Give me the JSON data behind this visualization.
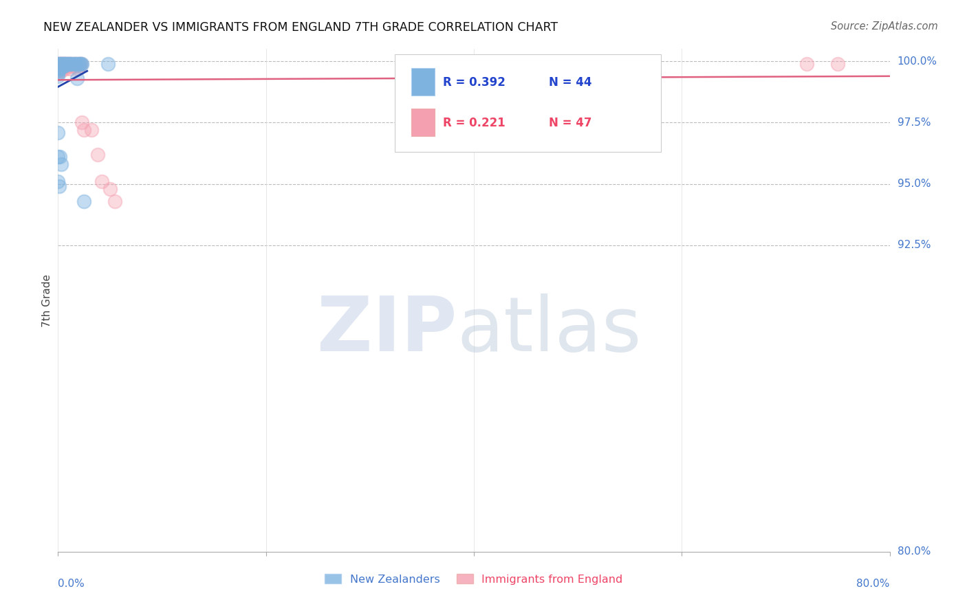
{
  "title": "NEW ZEALANDER VS IMMIGRANTS FROM ENGLAND 7TH GRADE CORRELATION CHART",
  "source": "Source: ZipAtlas.com",
  "ylabel": "7th Grade",
  "r1": 0.392,
  "n1": 44,
  "r2": 0.221,
  "n2": 47,
  "color_blue": "#7EB3E0",
  "color_pink": "#F4A0B0",
  "color_blue_line": "#2244AA",
  "color_pink_line": "#E06080",
  "xlim": [
    0.0,
    0.8
  ],
  "ylim": [
    0.8,
    1.005
  ],
  "xgrid_ticks": [
    0.0,
    0.2,
    0.4,
    0.6,
    0.8
  ],
  "ygrid_ticks": [
    1.0,
    0.975,
    0.95,
    0.925
  ],
  "ylabel_right_vals": [
    1.0,
    0.975,
    0.95,
    0.925,
    0.8
  ],
  "ylabel_right_labels": [
    "100.0%",
    "97.5%",
    "95.0%",
    "92.5%",
    "80.0%"
  ],
  "legend_label1": "New Zealanders",
  "legend_label2": "Immigrants from England",
  "nz_x": [
    0.001,
    0.001,
    0.001,
    0.002,
    0.002,
    0.002,
    0.003,
    0.003,
    0.004,
    0.004,
    0.005,
    0.005,
    0.006,
    0.006,
    0.007,
    0.008,
    0.009,
    0.01,
    0.011,
    0.012,
    0.013,
    0.015,
    0.016,
    0.017,
    0.018,
    0.019,
    0.02,
    0.021,
    0.022,
    0.023,
    0.025,
    0.0,
    0.0,
    0.0,
    0.0,
    0.0,
    0.0,
    0.0,
    0.0,
    0.0,
    0.001,
    0.002,
    0.003,
    0.048
  ],
  "nz_y": [
    0.999,
    0.998,
    0.997,
    0.999,
    0.998,
    0.997,
    0.999,
    0.998,
    0.999,
    0.998,
    0.999,
    0.998,
    0.999,
    0.998,
    0.999,
    0.999,
    0.999,
    0.999,
    0.999,
    0.999,
    0.999,
    0.999,
    0.999,
    0.999,
    0.993,
    0.999,
    0.999,
    0.999,
    0.999,
    0.999,
    0.943,
    0.999,
    0.998,
    0.997,
    0.996,
    0.995,
    0.994,
    0.971,
    0.961,
    0.951,
    0.949,
    0.961,
    0.958,
    0.999
  ],
  "eng_x": [
    0.0,
    0.0,
    0.0,
    0.0,
    0.0,
    0.001,
    0.001,
    0.001,
    0.002,
    0.002,
    0.003,
    0.003,
    0.003,
    0.004,
    0.004,
    0.005,
    0.005,
    0.006,
    0.006,
    0.007,
    0.007,
    0.008,
    0.009,
    0.009,
    0.01,
    0.011,
    0.012,
    0.012,
    0.013,
    0.014,
    0.015,
    0.016,
    0.017,
    0.018,
    0.019,
    0.02,
    0.021,
    0.022,
    0.023,
    0.025,
    0.032,
    0.038,
    0.042,
    0.05,
    0.055,
    0.72,
    0.75
  ],
  "eng_y": [
    0.999,
    0.998,
    0.997,
    0.996,
    0.995,
    0.999,
    0.998,
    0.997,
    0.999,
    0.997,
    0.999,
    0.998,
    0.996,
    0.999,
    0.997,
    0.999,
    0.998,
    0.999,
    0.998,
    0.999,
    0.997,
    0.998,
    0.999,
    0.998,
    0.998,
    0.999,
    0.999,
    0.997,
    0.998,
    0.999,
    0.998,
    0.999,
    0.998,
    0.999,
    0.997,
    0.998,
    0.999,
    0.999,
    0.975,
    0.972,
    0.972,
    0.962,
    0.951,
    0.948,
    0.943,
    0.999,
    0.999
  ]
}
